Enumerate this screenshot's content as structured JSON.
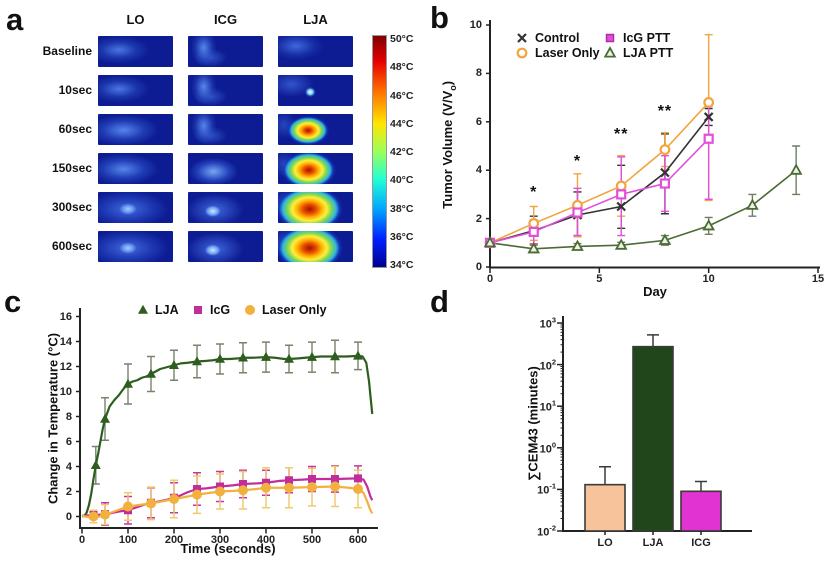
{
  "figure": {
    "panel_letters": {
      "a": "a",
      "b": "b",
      "c": "c",
      "d": "d"
    },
    "background": "#ffffff"
  },
  "chart_data": [
    {
      "id": "a",
      "type": "heatmap",
      "columns": [
        "LO",
        "ICG",
        "LJA"
      ],
      "rows": [
        "Baseline",
        "10sec",
        "60sec",
        "150sec",
        "300sec",
        "600sec"
      ],
      "colormap": "jet",
      "colorbar_ticks": [
        "50°C",
        "48°C",
        "46°C",
        "44°C",
        "42°C",
        "40°C",
        "38°C",
        "36°C",
        "34°C"
      ],
      "colorbar_range_c": [
        34,
        50
      ],
      "cells": [
        [
          "blob-faint",
          "squiggle",
          "arc-faint"
        ],
        [
          "blob-faint",
          "squiggle",
          "spot-small"
        ],
        [
          "blob-mild",
          "squiggle",
          "hot-small"
        ],
        [
          "blob-mild",
          "curve",
          "hot-medium"
        ],
        [
          "blob-warm",
          "curve-bright",
          "hot-large"
        ],
        [
          "blob-warm",
          "curve-bright",
          "hot-large"
        ]
      ]
    },
    {
      "id": "b",
      "type": "line",
      "xlabel": "Day",
      "ylabel_main": "Tumor Volume (V/V",
      "ylabel_sub": "o",
      "ylabel_close": ")",
      "xlim": [
        0,
        15
      ],
      "ylim": [
        0,
        10
      ],
      "xticks": [
        0,
        5,
        10,
        15
      ],
      "yticks": [
        0,
        2,
        4,
        6,
        8,
        10
      ],
      "legend_position": "top-left-inside",
      "series": [
        {
          "name": "Control",
          "marker": "x",
          "color": "#333333",
          "err_color": "#333333",
          "x": [
            0,
            2,
            4,
            6,
            8,
            10
          ],
          "y": [
            1.0,
            1.5,
            2.15,
            2.5,
            3.9,
            6.2
          ],
          "err_up": [
            0.1,
            0.6,
            0.95,
            1.7,
            1.6,
            0.35
          ],
          "err_dn": [
            0.1,
            0.55,
            0.85,
            0.9,
            1.7,
            0.35
          ]
        },
        {
          "name": "Laser Only",
          "marker": "circle-open",
          "color": "#F2A43F",
          "err_color": "#F2A43F",
          "x": [
            0,
            2,
            4,
            6,
            8,
            10
          ],
          "y": [
            1.0,
            1.8,
            2.55,
            3.35,
            4.85,
            6.8
          ],
          "err_up": [
            0.1,
            0.7,
            1.3,
            1.25,
            0.7,
            2.8
          ],
          "err_dn": [
            0.1,
            0.7,
            1.3,
            1.25,
            0.7,
            4.05
          ]
        },
        {
          "name": "IcG PTT",
          "marker": "square-open",
          "color": "#E24FD8",
          "err_color": "#E24FD8",
          "x": [
            0,
            2,
            4,
            6,
            8,
            10
          ],
          "y": [
            1.0,
            1.45,
            2.25,
            3.0,
            3.45,
            5.3
          ],
          "err_up": [
            0.1,
            0.5,
            1.0,
            1.55,
            1.15,
            1.35
          ],
          "err_dn": [
            0.1,
            0.5,
            0.95,
            1.7,
            1.15,
            2.5
          ]
        },
        {
          "name": "LJA PTT",
          "marker": "triangle-open",
          "color": "#4A6B33",
          "err_color": "#6f7d63",
          "x": [
            0,
            2,
            4,
            6,
            8,
            10,
            12,
            14
          ],
          "y": [
            1.0,
            0.75,
            0.85,
            0.9,
            1.1,
            1.7,
            2.55,
            4.0
          ],
          "err_up": [
            0.08,
            0.15,
            0.12,
            0.12,
            0.2,
            0.35,
            0.45,
            1.0
          ],
          "err_dn": [
            0.08,
            0.15,
            0.12,
            0.12,
            0.2,
            0.35,
            0.45,
            1.0
          ]
        }
      ],
      "annotations": [
        {
          "text": "*",
          "x": 2,
          "y": 3.05
        },
        {
          "text": "*",
          "x": 4,
          "y": 4.35
        },
        {
          "text": "**",
          "x": 6,
          "y": 5.45
        },
        {
          "text": "**",
          "x": 8,
          "y": 6.4
        }
      ]
    },
    {
      "id": "c",
      "type": "line",
      "xlabel": "Time (seconds)",
      "ylabel": "Change in Temperature (°C)",
      "xlim": [
        0,
        650
      ],
      "ylim": [
        -1,
        16.5
      ],
      "xticks": [
        0,
        100,
        200,
        300,
        400,
        500,
        600
      ],
      "yticks": [
        0,
        2,
        4,
        6,
        8,
        10,
        12,
        14,
        16
      ],
      "legend_position": "top-inside",
      "series": [
        {
          "name": "LJA",
          "marker": "triangle-filled",
          "color": "#2E5E1F",
          "err_color": "#77836b",
          "line": [
            [
              0,
              0
            ],
            [
              5,
              0.05
            ],
            [
              10,
              0.3
            ],
            [
              15,
              0.9
            ],
            [
              20,
              1.8
            ],
            [
              25,
              3.0
            ],
            [
              30,
              4.1
            ],
            [
              35,
              5.0
            ],
            [
              40,
              6.0
            ],
            [
              45,
              7.0
            ],
            [
              50,
              7.8
            ],
            [
              55,
              8.3
            ],
            [
              60,
              8.8
            ],
            [
              70,
              9.3
            ],
            [
              80,
              9.7
            ],
            [
              90,
              10.2
            ],
            [
              100,
              10.6
            ],
            [
              110,
              10.8
            ],
            [
              120,
              10.9
            ],
            [
              130,
              11.1
            ],
            [
              140,
              11.2
            ],
            [
              150,
              11.4
            ],
            [
              160,
              11.6
            ],
            [
              170,
              11.8
            ],
            [
              180,
              11.9
            ],
            [
              190,
              12.0
            ],
            [
              200,
              12.1
            ],
            [
              215,
              12.25
            ],
            [
              230,
              12.3
            ],
            [
              250,
              12.4
            ],
            [
              270,
              12.45
            ],
            [
              285,
              12.5
            ],
            [
              300,
              12.6
            ],
            [
              320,
              12.6
            ],
            [
              340,
              12.65
            ],
            [
              350,
              12.7
            ],
            [
              370,
              12.7
            ],
            [
              400,
              12.75
            ],
            [
              420,
              12.7
            ],
            [
              440,
              12.6
            ],
            [
              450,
              12.6
            ],
            [
              470,
              12.65
            ],
            [
              500,
              12.75
            ],
            [
              520,
              12.8
            ],
            [
              550,
              12.8
            ],
            [
              575,
              12.8
            ],
            [
              600,
              12.85
            ],
            [
              610,
              12.8
            ],
            [
              618,
              12.3
            ],
            [
              624,
              10.8
            ],
            [
              628,
              9.3
            ],
            [
              631,
              8.2
            ]
          ],
          "marker_x": [
            30,
            50,
            100,
            150,
            200,
            250,
            300,
            350,
            400,
            450,
            500,
            550,
            600
          ],
          "marker_y": [
            4.1,
            7.8,
            10.6,
            11.4,
            12.1,
            12.4,
            12.6,
            12.7,
            12.75,
            12.6,
            12.75,
            12.8,
            12.85
          ],
          "err": [
            1.5,
            1.7,
            1.6,
            1.4,
            1.2,
            1.3,
            1.2,
            1.2,
            1.2,
            1.1,
            1.2,
            1.3,
            1.1
          ]
        },
        {
          "name": "IcG",
          "marker": "square-filled",
          "color": "#C22D9C",
          "err_color": "#C4379F",
          "line": [
            [
              0,
              0.05
            ],
            [
              20,
              0.1
            ],
            [
              40,
              0.15
            ],
            [
              50,
              0.2
            ],
            [
              60,
              0.25
            ],
            [
              80,
              0.4
            ],
            [
              100,
              0.5
            ],
            [
              120,
              0.75
            ],
            [
              140,
              1.0
            ],
            [
              150,
              1.1
            ],
            [
              160,
              1.15
            ],
            [
              180,
              1.3
            ],
            [
              200,
              1.5
            ],
            [
              215,
              1.7
            ],
            [
              230,
              1.95
            ],
            [
              250,
              2.2
            ],
            [
              270,
              2.25
            ],
            [
              300,
              2.4
            ],
            [
              330,
              2.5
            ],
            [
              350,
              2.6
            ],
            [
              380,
              2.65
            ],
            [
              400,
              2.7
            ],
            [
              430,
              2.85
            ],
            [
              450,
              2.9
            ],
            [
              480,
              2.95
            ],
            [
              500,
              3.0
            ],
            [
              550,
              3.0
            ],
            [
              600,
              3.05
            ],
            [
              612,
              2.95
            ],
            [
              620,
              2.4
            ],
            [
              627,
              1.6
            ],
            [
              631,
              1.3
            ]
          ],
          "marker_x": [
            25,
            50,
            100,
            150,
            200,
            250,
            300,
            350,
            400,
            450,
            500,
            550,
            600
          ],
          "marker_y": [
            0.1,
            0.2,
            0.5,
            1.1,
            1.5,
            2.2,
            2.4,
            2.6,
            2.7,
            2.9,
            3.0,
            3.0,
            3.05
          ],
          "err": [
            0.3,
            0.9,
            1.1,
            1.2,
            1.2,
            1.3,
            1.2,
            1.1,
            1.0,
            1.0,
            1.0,
            1.05,
            1.0
          ]
        },
        {
          "name": "Laser Only",
          "marker": "circle-filled",
          "color": "#F2B13F",
          "err_color": "#F0C96A",
          "line": [
            [
              0,
              0.05
            ],
            [
              15,
              -0.05
            ],
            [
              30,
              -0.1
            ],
            [
              50,
              0.15
            ],
            [
              70,
              0.4
            ],
            [
              100,
              0.8
            ],
            [
              120,
              0.9
            ],
            [
              150,
              1.05
            ],
            [
              180,
              1.25
            ],
            [
              200,
              1.4
            ],
            [
              230,
              1.6
            ],
            [
              250,
              1.75
            ],
            [
              280,
              1.9
            ],
            [
              300,
              2.0
            ],
            [
              330,
              2.05
            ],
            [
              350,
              2.1
            ],
            [
              380,
              2.2
            ],
            [
              400,
              2.3
            ],
            [
              450,
              2.3
            ],
            [
              500,
              2.35
            ],
            [
              550,
              2.4
            ],
            [
              580,
              2.3
            ],
            [
              600,
              2.2
            ],
            [
              612,
              1.9
            ],
            [
              620,
              1.2
            ],
            [
              627,
              0.5
            ],
            [
              631,
              0.25
            ]
          ],
          "marker_x": [
            25,
            50,
            100,
            150,
            200,
            250,
            300,
            350,
            400,
            450,
            500,
            550,
            600
          ],
          "marker_y": [
            0.0,
            0.15,
            0.8,
            1.05,
            1.4,
            1.75,
            2.0,
            2.1,
            2.3,
            2.3,
            2.35,
            2.4,
            2.2
          ],
          "err": [
            0.5,
            0.8,
            1.1,
            1.3,
            1.5,
            1.5,
            1.4,
            1.5,
            1.6,
            1.6,
            1.5,
            1.6,
            1.5
          ]
        }
      ]
    },
    {
      "id": "d",
      "type": "bar",
      "ylabel": "∑CEM43 (minutes)",
      "yscale": "log",
      "ylim": [
        0.01,
        1000
      ],
      "ytick_exponents": [
        3,
        2,
        1,
        0,
        -1,
        -2
      ],
      "categories": [
        "LO",
        "LJA",
        "ICG"
      ],
      "values": [
        0.13,
        270,
        0.09
      ],
      "err_top": [
        0.35,
        520,
        0.155
      ],
      "colors": [
        "#F6C39B",
        "#22461B",
        "#E133D2"
      ],
      "bar_edge_color": "#3a3a3a"
    }
  ]
}
